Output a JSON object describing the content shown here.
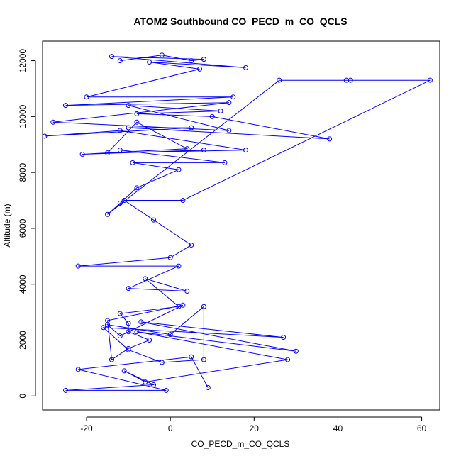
{
  "chart_data": {
    "type": "line",
    "title": "ATOM2 Southbound CO_PECD_m_CO_QCLS",
    "xlabel": "CO_PECD_m_CO_QCLS",
    "ylabel": "Altitude (m)",
    "xlim": [
      -30.5,
      64.3
    ],
    "ylim": [
      -500,
      12700
    ],
    "xticks": [
      -20,
      0,
      20,
      40,
      60
    ],
    "yticks": [
      0,
      2000,
      4000,
      6000,
      8000,
      10000,
      12000
    ],
    "xtick_labels": [
      "-20",
      "0",
      "20",
      "40",
      "60"
    ],
    "ytick_labels": [
      "0",
      "2000",
      "4000",
      "6000",
      "8000",
      "10000",
      "12000"
    ],
    "series_color": "#0000ff",
    "markers": "open-circle",
    "grid": false,
    "legend": "none",
    "series": [
      {
        "x": [
          -12,
          -2,
          5,
          8,
          -14,
          18,
          -5,
          7,
          -20,
          15,
          -25,
          14,
          -28,
          14,
          -10,
          12,
          -8,
          10,
          38,
          -10,
          5,
          -30,
          -12,
          18,
          -15,
          -8,
          4,
          -21,
          8,
          -12,
          13,
          -9,
          2,
          -8,
          -12,
          -15,
          26,
          42,
          43,
          62,
          3,
          -11,
          -4,
          5,
          0,
          -22,
          2,
          -10,
          4,
          -6,
          2,
          -12,
          -10,
          -10,
          -5,
          -10,
          -14,
          -15,
          3,
          -12,
          -15,
          0,
          8,
          8,
          -2,
          -10,
          -16,
          27,
          -7,
          30,
          -8,
          28,
          -6,
          -11,
          -4,
          -25,
          -1,
          -22,
          5,
          9
        ],
        "y": [
          12000,
          12200,
          12000,
          12050,
          12150,
          11750,
          11950,
          11700,
          10700,
          10700,
          10400,
          10500,
          9800,
          9500,
          10400,
          10200,
          10100,
          10000,
          9200,
          9600,
          9600,
          9300,
          9500,
          8800,
          8700,
          9800,
          8850,
          8650,
          8800,
          8800,
          8350,
          8350,
          8100,
          7450,
          6900,
          6500,
          11300,
          11300,
          11300,
          11300,
          7000,
          7000,
          6300,
          5400,
          4950,
          4650,
          4650,
          3850,
          3750,
          4200,
          3200,
          2950,
          2600,
          2300,
          2000,
          1700,
          1300,
          2700,
          3250,
          2150,
          2550,
          2200,
          3200,
          1300,
          1200,
          1650,
          2450,
          2100,
          2650,
          1600,
          2300,
          1300,
          500,
          900,
          400,
          200,
          200,
          950,
          1400,
          300
        ]
      }
    ]
  }
}
